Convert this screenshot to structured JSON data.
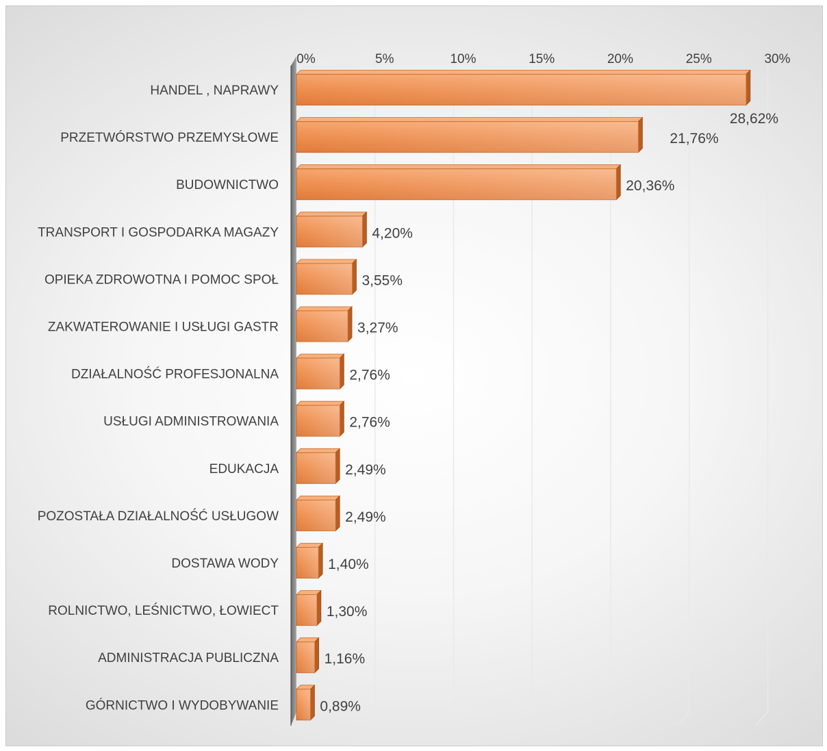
{
  "chart_data": {
    "type": "bar",
    "orientation": "horizontal",
    "title": "",
    "xlabel": "",
    "ylabel": "",
    "xlim": [
      0,
      30
    ],
    "ticks": [
      "0%",
      "5%",
      "10%",
      "15%",
      "20%",
      "25%",
      "30%"
    ],
    "tick_values": [
      0,
      5,
      10,
      15,
      20,
      25,
      30
    ],
    "grid": true,
    "legend": "none",
    "bar_color": "#ED8E4E",
    "categories": [
      "HANDEL , NAPRAWY",
      "PRZETWÓRSTWO PRZEMYSŁOWE",
      "BUDOWNICTWO",
      "TRANSPORT I GOSPODARKA MAGAZY",
      "OPIEKA ZDROWOTNA I POMOC SPOŁ",
      "ZAKWATEROWANIE I USŁUGI GASTR",
      "DZIAŁALNOŚĆ PROFESJONALNA",
      "USŁUGI ADMINISTROWANIA",
      "EDUKACJA",
      "POZOSTAŁA DZIAŁALNOŚĆ USŁUGOW",
      "DOSTAWA WODY",
      "ROLNICTWO, LEŚNICTWO, ŁOWIECT",
      "ADMINISTRACJA PUBLICZNA",
      "GÓRNICTWO I WYDOBYWANIE"
    ],
    "values": [
      28.62,
      21.76,
      20.36,
      4.2,
      3.55,
      3.27,
      2.76,
      2.76,
      2.49,
      2.49,
      1.4,
      1.3,
      1.16,
      0.89
    ],
    "data_labels": [
      "28,62%",
      "21,76%",
      "20,36%",
      "4,20%",
      "3,55%",
      "3,27%",
      "2,76%",
      "2,76%",
      "2,49%",
      "2,49%",
      "1,40%",
      "1,30%",
      "1,16%",
      "0,89%"
    ]
  }
}
